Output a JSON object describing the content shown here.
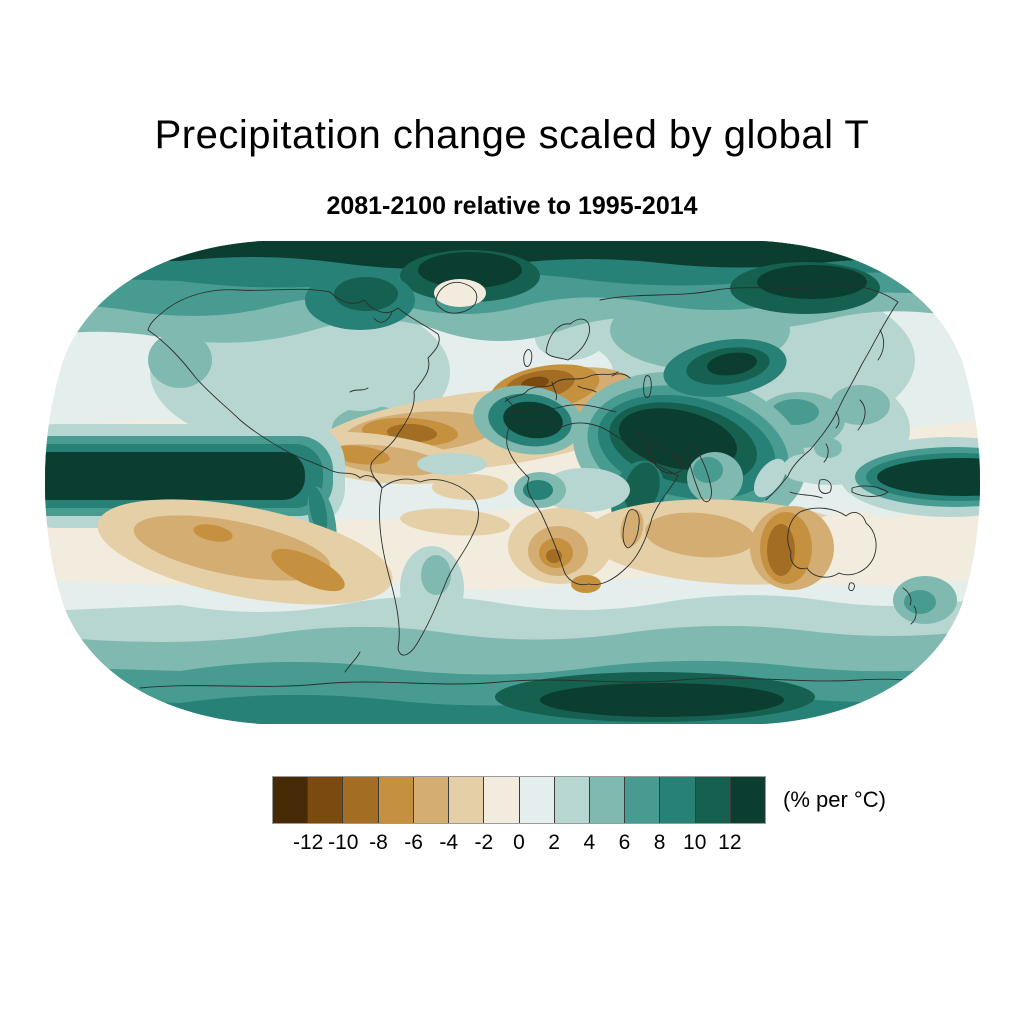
{
  "figure": {
    "title": "Precipitation change scaled by global T",
    "subtitle": "2081-2100 relative to 1995-2014",
    "background": "#ffffff"
  },
  "map": {
    "projection": "Robinson world map, filled contours",
    "coastline_color": "#2e2e2e"
  },
  "colorbar": {
    "unit_label": "(% per °C)",
    "ticks": [
      "-12",
      "-10",
      "-8",
      "-6",
      "-4",
      "-2",
      "0",
      "2",
      "4",
      "6",
      "8",
      "10",
      "12"
    ],
    "colors": [
      "#472b06",
      "#7b4a10",
      "#a36e24",
      "#c6913f",
      "#d4ad73",
      "#e4cfa6",
      "#f2ecdf",
      "#e4eeec",
      "#b8d6d1",
      "#80b9b0",
      "#489b90",
      "#278176",
      "#16604f",
      "#0b3e30"
    ]
  },
  "chart_data": {
    "type": "heatmap",
    "title": "Precipitation change scaled by global T",
    "subtitle": "2081-2100 relative to 1995-2014",
    "units": "% per °C",
    "colorbar_ticks": [
      -12,
      -10,
      -8,
      -6,
      -4,
      -2,
      0,
      2,
      4,
      6,
      8,
      10,
      12
    ],
    "colorbar_range": [
      "< -12",
      "> 12"
    ],
    "legend_position": "bottom",
    "regions_approximate_values": [
      {
        "region": "Arctic and high northern latitudes",
        "value_pct_per_degC": "6 to >12"
      },
      {
        "region": "Equatorial Pacific band",
        "value_pct_per_degC": "> 12"
      },
      {
        "region": "Middle East / Arabian Peninsula / NE Africa",
        "value_pct_per_degC": "8 to >12"
      },
      {
        "region": "Central Asia",
        "value_pct_per_degC": "8 to >12"
      },
      {
        "region": "Mediterranean and North Africa",
        "value_pct_per_degC": "-12 to -6"
      },
      {
        "region": "Subtropical North Atlantic / Caribbean",
        "value_pct_per_degC": "-10 to -4"
      },
      {
        "region": "Eastern subtropical Atlantic off NW Africa",
        "value_pct_per_degC": "8 to >12"
      },
      {
        "region": "Subtropical South Pacific",
        "value_pct_per_degC": "-8 to -4"
      },
      {
        "region": "Southern Africa",
        "value_pct_per_degC": "-10 to -4"
      },
      {
        "region": "SE Indian Ocean and Western Australia",
        "value_pct_per_degC": "-12 to -6"
      },
      {
        "region": "Northern mid-latitude continents",
        "value_pct_per_degC": "2 to 6"
      },
      {
        "region": "Southern Ocean",
        "value_pct_per_degC": "4 to 8"
      },
      {
        "region": "East Antarctica",
        "value_pct_per_degC": "10 to >12"
      }
    ]
  }
}
